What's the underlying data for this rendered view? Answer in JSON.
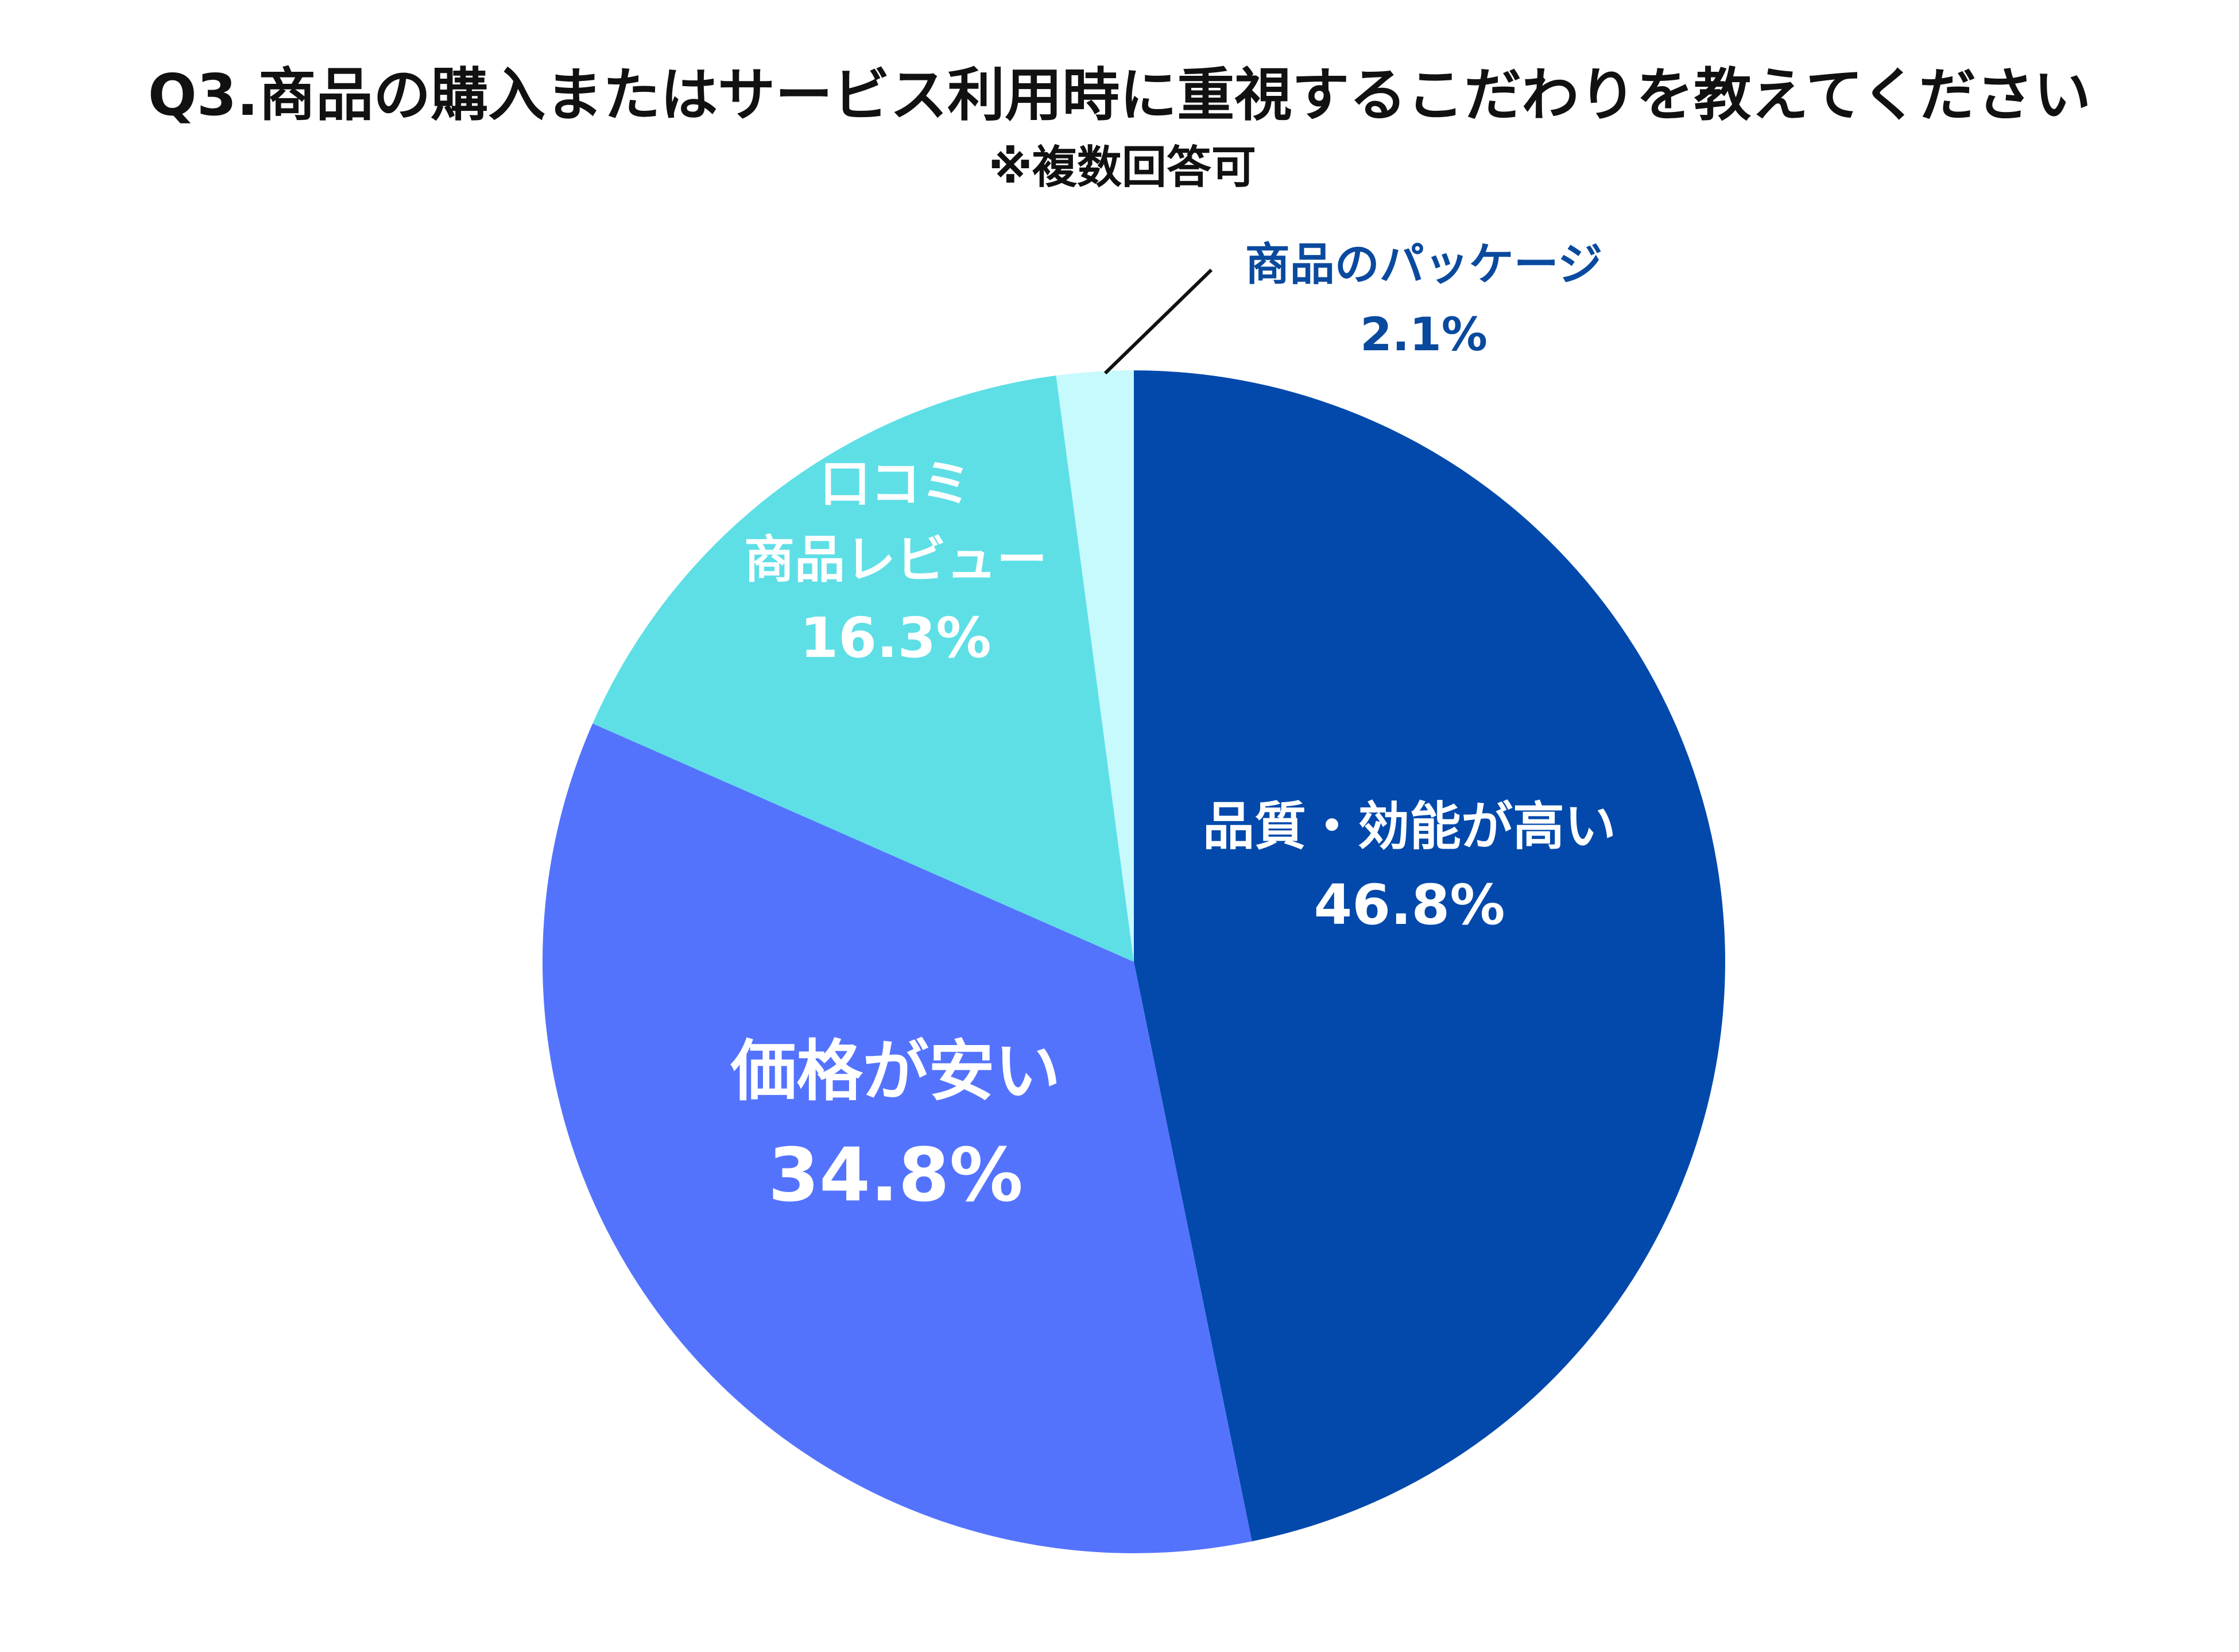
{
  "chart_data": {
    "type": "pie",
    "title": "Q3.商品の購入またはサービス利用時に重視するこだわりを教えてください",
    "subtitle": "※複数回答可",
    "start_angle_deg": 0,
    "direction": "clockwise",
    "slices": [
      {
        "key": "quality",
        "label_lines": [
          "品質・効能が高い"
        ],
        "value": 46.8,
        "value_label": "46.8%",
        "color": "#0249AB",
        "label_color": "#FFFFFF",
        "label_placement": "inside"
      },
      {
        "key": "price",
        "label_lines": [
          "価格が安い"
        ],
        "value": 34.8,
        "value_label": "34.8%",
        "color": "#5473FD",
        "label_color": "#FFFFFF",
        "label_placement": "inside"
      },
      {
        "key": "reviews",
        "label_lines": [
          "口コミ",
          "商品レビュー"
        ],
        "value": 16.3,
        "value_label": "16.3%",
        "color": "#5EDFE6",
        "label_color": "#FFFFFF",
        "label_placement": "inside"
      },
      {
        "key": "package",
        "label_lines": [
          "商品のパッケージ"
        ],
        "value": 2.1,
        "value_label": "2.1%",
        "color": "#C7FAFC",
        "label_color": "#0A4A9E",
        "label_placement": "outside-callout"
      }
    ]
  }
}
